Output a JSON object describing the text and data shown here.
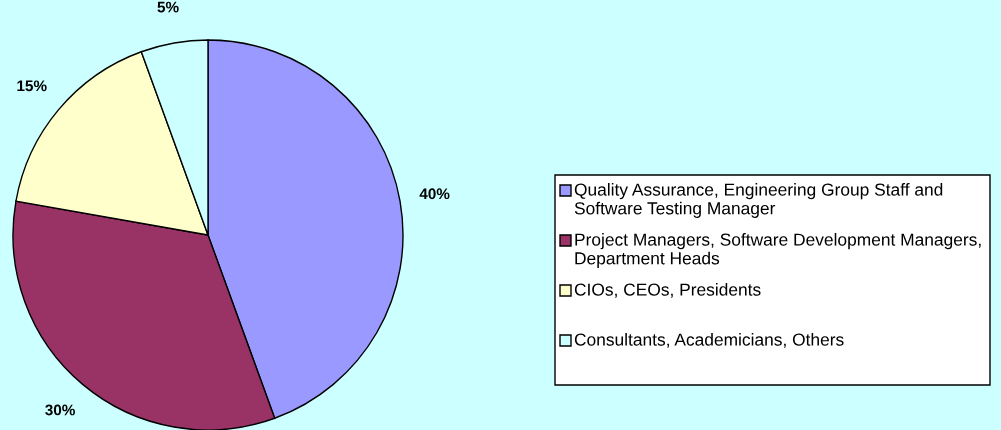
{
  "chart_data": {
    "type": "pie",
    "categories": [
      "Quality Assurance, Engineering Group Staff and Software Testing Manager",
      "Project Managers, Software Development Managers, Department Heads",
      "CIOs, CEOs, Presidents",
      "Consultants, Academicians, Others"
    ],
    "values": [
      40,
      30,
      15,
      5
    ],
    "colors": [
      "#9999ff",
      "#993366",
      "#ffffcc",
      "#ccffff"
    ],
    "value_labels": [
      "40%",
      "30%",
      "15%",
      "5%"
    ],
    "legend": "right"
  }
}
